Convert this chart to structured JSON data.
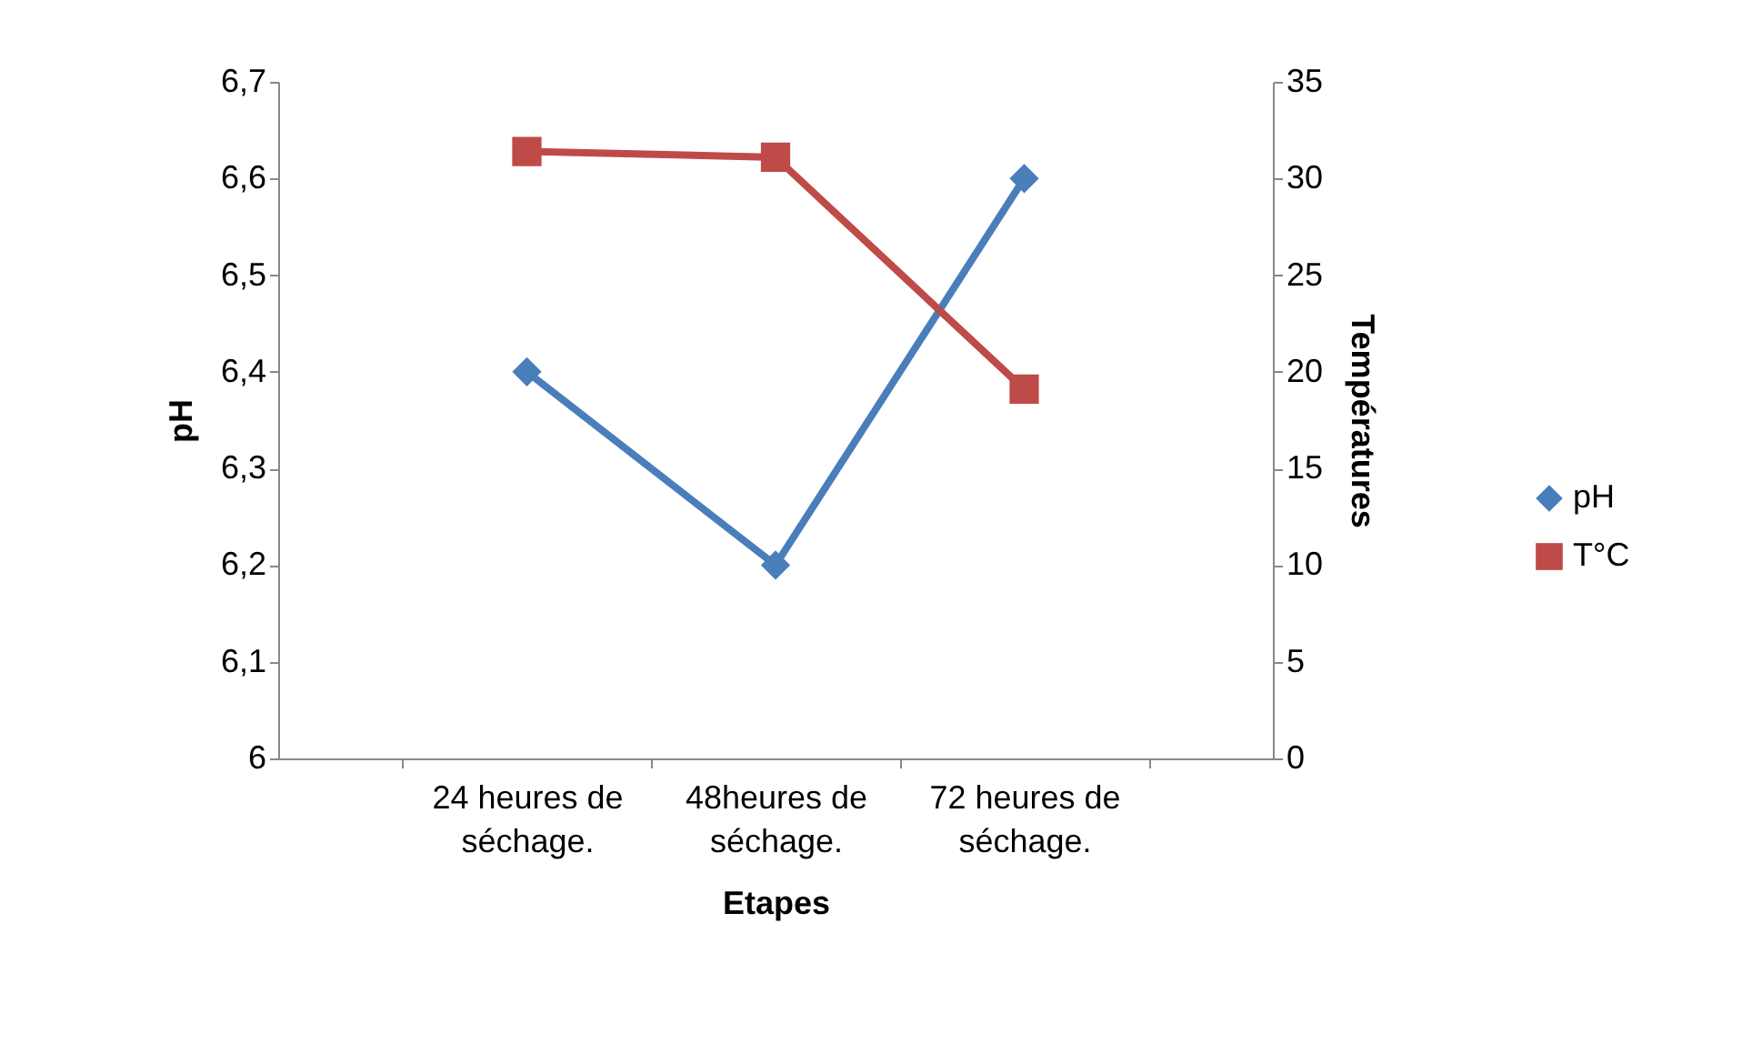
{
  "chart_data": {
    "type": "line",
    "xlabel": "Etapes",
    "ylabel": "pH",
    "y2label": "Températures",
    "categories": [
      "24 heures de séchage.",
      "48heures de séchage.",
      "72 heures de séchage."
    ],
    "series": [
      {
        "name": "pH",
        "color": "#4a7ebb",
        "marker": "diamond",
        "values": [
          6.4,
          6.2,
          6.6
        ]
      },
      {
        "name": "T°C",
        "color": "#be4b48",
        "marker": "square",
        "axis": "y2",
        "values": [
          31.4,
          31.1,
          19.1
        ]
      }
    ],
    "ylim": [
      6,
      6.7
    ],
    "yticks": [
      {
        "value": 6,
        "label": "6"
      },
      {
        "value": 6.1,
        "label": "6,1"
      },
      {
        "value": 6.2,
        "label": "6,2"
      },
      {
        "value": 6.3,
        "label": "6,3"
      },
      {
        "value": 6.4,
        "label": "6,4"
      },
      {
        "value": 6.5,
        "label": "6,5"
      },
      {
        "value": 6.6,
        "label": "6,6"
      },
      {
        "value": 6.7,
        "label": "6,7"
      }
    ],
    "y2lim": [
      0,
      35
    ],
    "y2ticks": [
      0,
      5,
      10,
      15,
      20,
      25,
      30,
      35
    ],
    "legend": "right",
    "grid": false,
    "line_style": "solid"
  }
}
